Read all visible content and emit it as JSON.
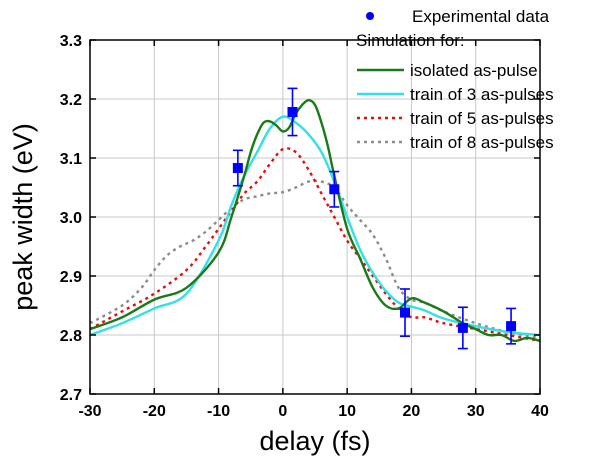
{
  "chart_data": {
    "type": "line",
    "xlabel": "delay (fs)",
    "ylabel": "peak width (eV)",
    "xlim": [
      -30,
      40
    ],
    "ylim": [
      2.7,
      3.3
    ],
    "xticks": [
      "-30",
      "-20",
      "-10",
      "0",
      "10",
      "20",
      "30",
      "40"
    ],
    "yticks": [
      "2.7",
      "2.8",
      "2.9",
      "3.0",
      "3.1",
      "3.2",
      "3.3"
    ],
    "grid": true,
    "legend_position": "top-right",
    "legend_heading": "Simulation for:",
    "experimental": {
      "name": "Experimental data",
      "color": "#0000ff",
      "x": [
        -7,
        1.5,
        8,
        19,
        28,
        35.5
      ],
      "y": [
        3.083,
        3.178,
        3.047,
        2.838,
        2.812,
        2.815
      ],
      "err": [
        0.03,
        0.04,
        0.03,
        0.04,
        0.035,
        0.03
      ]
    },
    "series": [
      {
        "name": "isolated as-pulse",
        "color": "#1a7a1a",
        "dash": "solid",
        "x": [
          -30,
          -25,
          -20,
          -15,
          -10,
          -8,
          -6,
          -5,
          -4,
          -3,
          -2,
          -1,
          0,
          1,
          2,
          3,
          4,
          5,
          6,
          7,
          8,
          10,
          12,
          14,
          16,
          18,
          20,
          22,
          25,
          28,
          30,
          32,
          34,
          36,
          38,
          40
        ],
        "y": [
          2.81,
          2.83,
          2.86,
          2.88,
          2.94,
          3.0,
          3.07,
          3.11,
          3.14,
          3.16,
          3.162,
          3.155,
          3.145,
          3.152,
          3.175,
          3.19,
          3.198,
          3.19,
          3.16,
          3.12,
          3.07,
          2.98,
          2.93,
          2.88,
          2.85,
          2.845,
          2.862,
          2.855,
          2.84,
          2.82,
          2.81,
          2.8,
          2.8,
          2.79,
          2.795,
          2.79
        ]
      },
      {
        "name": "train of 3 as-pulses",
        "color": "#33e0e6",
        "dash": "solid",
        "x": [
          -30,
          -25,
          -20,
          -15,
          -10,
          -8,
          -6,
          -4,
          -2,
          0,
          2,
          4,
          6,
          8,
          10,
          12,
          14,
          16,
          18,
          20,
          22,
          25,
          30,
          35,
          40
        ],
        "y": [
          2.8,
          2.82,
          2.845,
          2.87,
          2.96,
          3.02,
          3.07,
          3.11,
          3.15,
          3.17,
          3.16,
          3.14,
          3.11,
          3.06,
          3.0,
          2.945,
          2.905,
          2.875,
          2.855,
          2.848,
          2.842,
          2.828,
          2.815,
          2.805,
          2.8
        ]
      },
      {
        "name": "train of 5 as-pulses",
        "color": "#e01010",
        "dash": "dotted",
        "x": [
          -30,
          -25,
          -20,
          -15,
          -12,
          -10,
          -8,
          -6,
          -4,
          -2,
          0,
          2,
          4,
          6,
          8,
          10,
          12,
          14,
          16,
          18,
          20,
          22,
          25,
          30,
          35,
          40
        ],
        "y": [
          2.81,
          2.84,
          2.87,
          2.91,
          2.95,
          2.98,
          3.01,
          3.04,
          3.06,
          3.09,
          3.115,
          3.11,
          3.08,
          3.04,
          3.0,
          2.96,
          2.93,
          2.9,
          2.87,
          2.845,
          2.83,
          2.83,
          2.82,
          2.81,
          2.8,
          2.79
        ]
      },
      {
        "name": "train of 8 as-pulses",
        "color": "#8c8c8c",
        "dash": "dotted",
        "x": [
          -30,
          -25,
          -22,
          -20,
          -18,
          -16,
          -14,
          -12,
          -10,
          -8,
          -6,
          -4,
          -2,
          0,
          2,
          4,
          6,
          8,
          10,
          12,
          14,
          16,
          18,
          20,
          22,
          25,
          30,
          35,
          40
        ],
        "y": [
          2.82,
          2.85,
          2.88,
          2.91,
          2.935,
          2.95,
          2.96,
          2.975,
          2.995,
          3.015,
          3.03,
          3.035,
          3.04,
          3.042,
          3.05,
          3.06,
          3.06,
          3.05,
          3.02,
          2.995,
          2.97,
          2.93,
          2.88,
          2.86,
          2.855,
          2.84,
          2.82,
          2.805,
          2.795
        ]
      }
    ]
  }
}
